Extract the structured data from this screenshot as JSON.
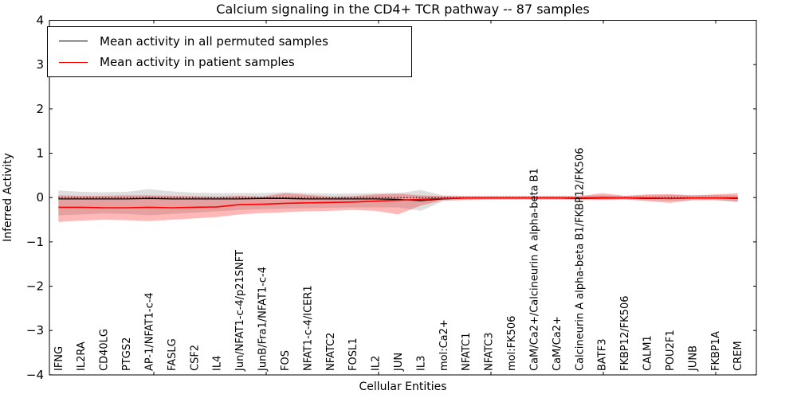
{
  "chart_data": {
    "type": "line",
    "title": "Calcium signaling in the CD4+ TCR pathway -- 87 samples",
    "xlabel": "Cellular Entities",
    "ylabel": "Inferred Activity",
    "ylim": [
      -4,
      4
    ],
    "yticks": [
      4,
      3,
      2,
      1,
      0,
      -1,
      -2,
      -3,
      -4
    ],
    "grid": false,
    "legend_position": "upper-left",
    "zero_line_style": "dotted",
    "categories": [
      "IFNG",
      "IL2RA",
      "CD40LG",
      "PTGS2",
      "AP-1/NFAT1-c-4",
      "FASLG",
      "CSF2",
      "IL4",
      "Jun/NFAT1-c-4/p21SNFT",
      "JunB/Fra1/NFAT1-c-4",
      "FOS",
      "NFAT1-c-4/ICER1",
      "NFATC2",
      "FOSL1",
      "IL2",
      "JUN",
      "IL3",
      "mol:Ca2+",
      "NFATC1",
      "NFATC3",
      "mol:FK506",
      "CaM/Ca2+/Calcineurin A alpha-beta B1",
      "CaM/Ca2+",
      "Calcineurin A alpha-beta B1/FKBP12/FK506",
      "BATF3",
      "FKBP12/FK506",
      "CALM1",
      "POU2F1",
      "JUNB",
      "FKBP1A",
      "CREM"
    ],
    "series": [
      {
        "name": "Mean activity in all permuted samples",
        "color": "#000000",
        "band_color": "rgba(0,0,0,0.13)",
        "values": [
          -0.03,
          -0.03,
          -0.03,
          -0.03,
          -0.02,
          -0.03,
          -0.03,
          -0.03,
          -0.03,
          -0.02,
          -0.02,
          -0.03,
          -0.03,
          -0.03,
          -0.03,
          -0.04,
          -0.07,
          -0.03,
          -0.01,
          -0.01,
          -0.01,
          -0.01,
          -0.01,
          -0.02,
          -0.01,
          -0.01,
          -0.02,
          -0.02,
          -0.01,
          -0.01,
          -0.02
        ],
        "band_high": [
          0.16,
          0.13,
          0.12,
          0.13,
          0.19,
          0.14,
          0.11,
          0.1,
          0.1,
          0.1,
          0.12,
          0.1,
          0.09,
          0.09,
          0.1,
          0.1,
          0.17,
          0.05,
          0.04,
          0.04,
          0.04,
          0.04,
          0.04,
          0.04,
          0.05,
          0.04,
          0.05,
          0.06,
          0.05,
          0.06,
          0.05
        ],
        "band_low": [
          -0.4,
          -0.38,
          -0.36,
          -0.37,
          -0.4,
          -0.37,
          -0.34,
          -0.31,
          -0.28,
          -0.26,
          -0.25,
          -0.24,
          -0.23,
          -0.22,
          -0.22,
          -0.22,
          -0.3,
          -0.08,
          -0.06,
          -0.05,
          -0.05,
          -0.05,
          -0.05,
          -0.06,
          -0.06,
          -0.05,
          -0.06,
          -0.07,
          -0.06,
          -0.07,
          -0.1
        ]
      },
      {
        "name": "Mean activity in patient samples",
        "color": "#ff0000",
        "band_color": "rgba(255,0,0,0.28)",
        "values": [
          -0.22,
          -0.22,
          -0.23,
          -0.23,
          -0.22,
          -0.23,
          -0.22,
          -0.21,
          -0.16,
          -0.15,
          -0.13,
          -0.12,
          -0.11,
          -0.1,
          -0.08,
          -0.06,
          -0.04,
          -0.02,
          -0.01,
          -0.01,
          -0.01,
          -0.01,
          -0.01,
          -0.01,
          0.0,
          -0.01,
          -0.01,
          -0.02,
          -0.01,
          -0.01,
          -0.01
        ],
        "band_high": [
          0.05,
          0.04,
          0.04,
          0.05,
          0.05,
          0.04,
          0.03,
          0.02,
          0.04,
          0.02,
          0.1,
          0.06,
          0.02,
          0.03,
          0.07,
          0.09,
          0.05,
          0.03,
          0.03,
          0.03,
          0.03,
          0.03,
          0.03,
          0.03,
          0.1,
          0.04,
          0.07,
          0.08,
          0.05,
          0.07,
          0.1
        ],
        "band_low": [
          -0.55,
          -0.52,
          -0.5,
          -0.51,
          -0.53,
          -0.5,
          -0.47,
          -0.44,
          -0.38,
          -0.35,
          -0.33,
          -0.31,
          -0.3,
          -0.28,
          -0.3,
          -0.38,
          -0.18,
          -0.06,
          -0.05,
          -0.04,
          -0.04,
          -0.04,
          -0.04,
          -0.04,
          -0.05,
          -0.04,
          -0.08,
          -0.12,
          -0.06,
          -0.05,
          -0.09
        ]
      }
    ]
  }
}
